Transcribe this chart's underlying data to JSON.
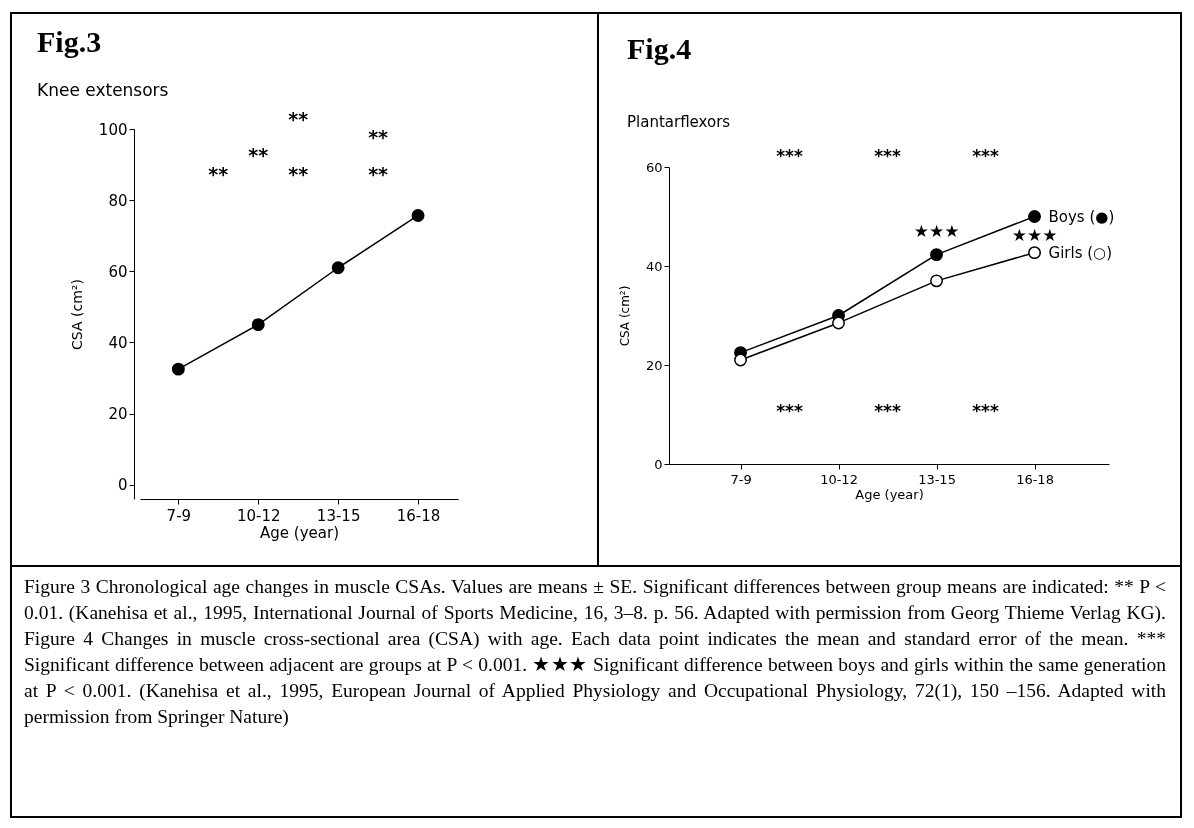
{
  "chart_data": [
    {
      "type": "line",
      "title": "Fig.3",
      "subtitle": "Knee extensors",
      "xlabel": "Age (year)",
      "ylabel": "CSA (cm²)",
      "categories": [
        "7-9",
        "10-12",
        "13-15",
        "16-18"
      ],
      "series": [
        {
          "color": "#000000",
          "values": [
            32.5,
            45,
            61,
            75.7
          ]
        }
      ],
      "ylim": [
        -4,
        100
      ],
      "yticks": [
        0,
        20,
        40,
        60,
        80,
        100
      ],
      "grid": false,
      "marker": "circle",
      "annotations": [
        "**",
        "**",
        "**",
        "**",
        "**",
        "**",
        "Figure 3 Chronological age changes in muscle CSAs. Values are means ± SE. Significant differences between group means are indicated: ** P < 0.01. (Kanehisa et al., 1995, International Journal of Sports Medicine, 16, 3–8. p. 56. Adapted with permission from Georg Thieme Verlag KG)."
      ]
    },
    {
      "type": "line",
      "title": "Fig.4",
      "subtitle": "Plantarflexors",
      "xlabel": "Age (year)",
      "ylabel": "CSA (cm²)",
      "categories": [
        "7-9",
        "10-12",
        "13-15",
        "16-18"
      ],
      "series": [
        {
          "name": "Boys (●)",
          "color": "#000000",
          "values": [
            22.5,
            30,
            42.3,
            50
          ]
        },
        {
          "name": "Girls (○)",
          "color": "#000000",
          "values": [
            21,
            28.5,
            37,
            42.7
          ]
        }
      ],
      "ylim": [
        0,
        60
      ],
      "yticks": [
        0,
        20,
        40,
        60
      ],
      "grid": false,
      "marker": "circle",
      "annotations": [
        "***",
        "***",
        "***",
        "***",
        "***",
        "***",
        "★★★",
        "★★★",
        "Figure 4 Changes in muscle cross-sectional area (CSA) with age. Each data point indicates the mean and standard error of the mean. *** Significant difference between adjacent are groups at P < 0.001. ★★★ Significant difference between boys and girls within the same generation at P < 0.001. (Kanehisa et al., 1995, European Journal of Applied Physiology and Occupational Physiology, 72(1), 150 –156. Adapted with permission from Springer Nature)"
      ]
    }
  ]
}
